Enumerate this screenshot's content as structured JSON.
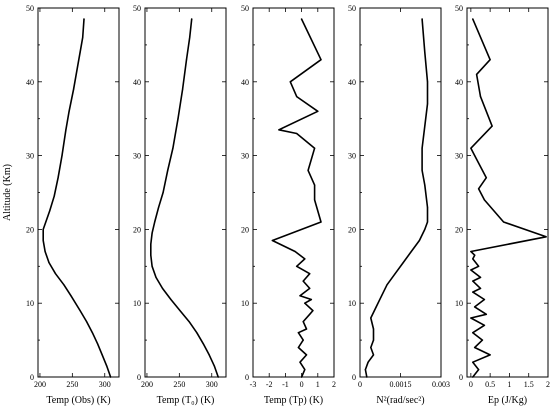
{
  "chart_data": [
    {
      "type": "line",
      "xlabel": "Temp (Obs) (K)",
      "ylabel": "Altitude (Km)",
      "xlim": [
        197,
        322
      ],
      "ylim": [
        0,
        50
      ],
      "xticks": [
        200,
        250,
        300
      ],
      "yticks": [
        0,
        10,
        20,
        30,
        40,
        50
      ],
      "series": [
        {
          "x": [
            309,
            303,
            296,
            289,
            281,
            272,
            262,
            248,
            237,
            224,
            214,
            208,
            205,
            205,
            209,
            215,
            222,
            228,
            234,
            240,
            245,
            252,
            258,
            262,
            266,
            268
          ],
          "y": [
            0,
            1.5,
            3,
            4.5,
            6,
            7.5,
            9,
            11,
            12.5,
            14,
            15.5,
            17,
            18.5,
            20,
            21,
            22.5,
            24.5,
            27,
            30,
            33.5,
            36,
            39,
            42,
            44,
            46,
            48.5
          ]
        }
      ]
    },
    {
      "type": "line",
      "xlabel": "Temp (T₀) (K)",
      "ylabel": "",
      "xlim": [
        197,
        322
      ],
      "ylim": [
        0,
        50
      ],
      "xticks": [
        200,
        250,
        300
      ],
      "yticks": [
        0,
        10,
        20,
        30,
        40,
        50
      ],
      "series": [
        {
          "x": [
            310,
            304,
            296,
            287,
            277,
            265,
            251,
            237,
            224,
            214,
            208,
            206,
            206,
            208,
            212,
            218,
            225,
            232,
            240,
            248,
            255,
            261,
            266,
            269
          ],
          "y": [
            0,
            1.5,
            3,
            4.5,
            6,
            7.5,
            9,
            10.5,
            12,
            13.5,
            15,
            16.5,
            18,
            19.5,
            21,
            23,
            25,
            28,
            31,
            35,
            39,
            43,
            46,
            48.5
          ]
        }
      ]
    },
    {
      "type": "line",
      "xlabel": "Temp (Tp) (K)",
      "ylabel": "",
      "xlim": [
        -3,
        2
      ],
      "ylim": [
        0,
        50
      ],
      "xticks": [
        -3,
        -2,
        -1,
        0,
        1,
        2
      ],
      "yticks": [
        0,
        10,
        20,
        30,
        40,
        50
      ],
      "series": [
        {
          "x": [
            0.0,
            0.2,
            -0.1,
            0.3,
            -0.2,
            0.1,
            -0.2,
            0.3,
            0.1,
            0.5,
            0.7,
            0.2,
            0.6,
            -0.1,
            0.5,
            0.1,
            0.5,
            -0.3,
            0.2,
            -0.4,
            -1.8,
            1.2,
            0.8,
            0.8,
            0.4,
            0.8,
            -0.3,
            -1.4,
            1.0,
            -0.3,
            -0.7,
            1.2,
            0.0
          ],
          "y": [
            0,
            1,
            2,
            3,
            4,
            5,
            6,
            6.5,
            7.5,
            8.5,
            9,
            10,
            10.5,
            11,
            12,
            13,
            14,
            15,
            16,
            17,
            18.5,
            21,
            24,
            26,
            28,
            31,
            33,
            33.5,
            36,
            38,
            40,
            43,
            48.5
          ]
        }
      ]
    },
    {
      "type": "line",
      "xlabel": "N²(rad/sec²)",
      "ylabel": "",
      "xlim": [
        0,
        0.003
      ],
      "ylim": [
        0,
        50
      ],
      "xticks": [
        0,
        0.0015,
        0.003
      ],
      "yticks": [
        0,
        10,
        20,
        30,
        40,
        50
      ],
      "series": [
        {
          "x": [
            0.00025,
            0.0002,
            0.0003,
            0.0005,
            0.0004,
            0.0005,
            0.0005,
            0.0004,
            0.0006,
            0.0008,
            0.001,
            0.0013,
            0.0016,
            0.0019,
            0.0022,
            0.0024,
            0.0025,
            0.0025,
            0.0024,
            0.0023,
            0.0023,
            0.0024,
            0.0025,
            0.0025,
            0.0024,
            0.0023
          ],
          "y": [
            0,
            1,
            2,
            3,
            4,
            5,
            6.5,
            8,
            9.5,
            11,
            12.5,
            14,
            15.5,
            17,
            18.5,
            20,
            21,
            23,
            26,
            28,
            31,
            34,
            37,
            40,
            44,
            48.5
          ]
        }
      ]
    },
    {
      "type": "line",
      "xlabel": "Ep (J/Kg)",
      "ylabel": "",
      "xlim": [
        -0.1,
        2
      ],
      "ylim": [
        0,
        50
      ],
      "xticks": [
        0,
        0.5,
        1,
        1.5,
        2
      ],
      "yticks": [
        0,
        10,
        20,
        30,
        40,
        50
      ],
      "series": [
        {
          "x": [
            0.05,
            0.2,
            0.05,
            0.5,
            0.1,
            0.3,
            0.05,
            0.35,
            0.0,
            0.4,
            0.1,
            0.35,
            0.05,
            0.25,
            0.05,
            0.25,
            0.0,
            0.2,
            0.05,
            0.1,
            0.0,
            1.95,
            0.85,
            0.35,
            0.2,
            0.4,
            0.1,
            0.0,
            0.55,
            0.25,
            0.15,
            0.5,
            0.05
          ],
          "y": [
            0,
            1,
            2,
            3,
            4,
            5,
            6,
            7,
            8,
            8.5,
            9.5,
            10.5,
            11.5,
            12,
            13,
            13.5,
            14.5,
            15,
            16,
            16.5,
            17,
            19,
            21,
            24,
            25.5,
            27,
            30,
            31,
            34,
            38,
            41,
            43,
            48.5
          ]
        }
      ]
    }
  ]
}
